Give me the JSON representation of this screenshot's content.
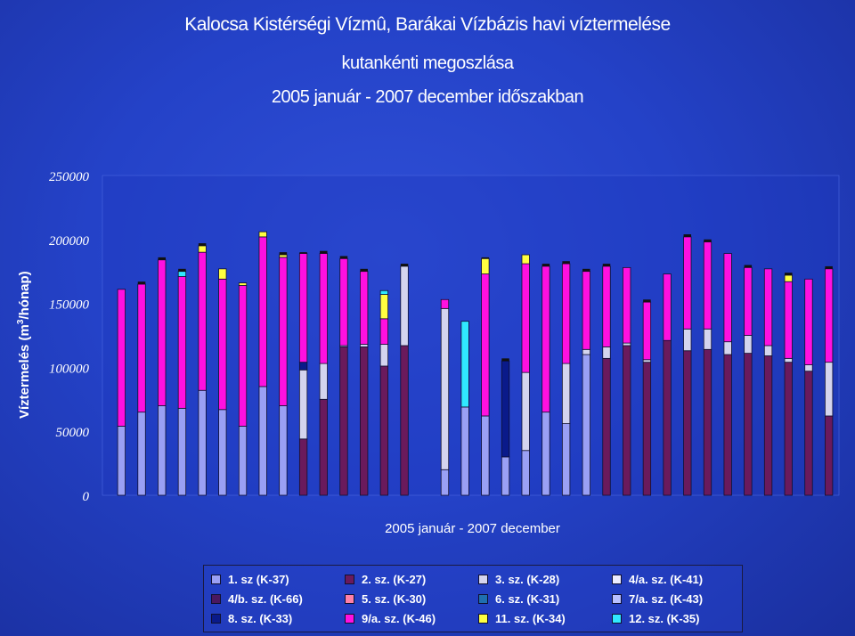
{
  "chart_data": {
    "type": "bar",
    "stacked": true,
    "title_lines": [
      "Kalocsa Kistérségi Vízmû, Barákai Vízbázis havi víztermelése",
      "kutankénti megoszlása",
      "2005 január - 2007 december időszakban"
    ],
    "xlabel": "2005 január - 2007 december",
    "ylabel_main": "Víztermelés (m",
    "ylabel_sup": "3",
    "ylabel_tail": "/hónap)",
    "ylim": [
      0,
      250000
    ],
    "yticks": [
      "0",
      "50000",
      "100000",
      "150000",
      "200000",
      "250000"
    ],
    "grid": false,
    "legend_position": "bottom",
    "series": [
      {
        "name": "1. sz (K-37)",
        "color": "#9aa0f4",
        "values": [
          54000,
          65000,
          70000,
          68000,
          82000,
          67000,
          54000,
          85000,
          70000,
          0,
          0,
          0,
          0,
          0,
          0,
          0,
          20000,
          69000,
          62000,
          30000,
          35000,
          65000,
          56000,
          110000,
          0,
          0,
          0,
          0,
          0,
          0,
          0,
          0,
          0,
          0,
          0,
          0
        ]
      },
      {
        "name": "2. sz. (K-27)",
        "color": "#6a1a5c",
        "values": [
          0,
          0,
          0,
          0,
          0,
          0,
          0,
          0,
          0,
          44000,
          75000,
          116000,
          116000,
          101000,
          117000,
          0,
          0,
          0,
          0,
          0,
          0,
          0,
          0,
          0,
          107000,
          117000,
          104000,
          121000,
          113000,
          114000,
          110000,
          111000,
          109000,
          104000,
          97000,
          62000
        ]
      },
      {
        "name": "3. sz. (K-28)",
        "color": "#d4d4ee",
        "values": [
          0,
          0,
          0,
          0,
          0,
          0,
          0,
          0,
          0,
          54000,
          28000,
          1000,
          2000,
          17000,
          62000,
          0,
          126000,
          0,
          0,
          0,
          61000,
          0,
          47000,
          4000,
          9000,
          2000,
          2000,
          0,
          17000,
          16000,
          10000,
          14000,
          8000,
          3000,
          5000,
          42000
        ]
      },
      {
        "name": "4/a. sz. (K-41)",
        "color": "#ececff",
        "values": [
          0,
          0,
          0,
          0,
          0,
          0,
          0,
          0,
          0,
          0,
          0,
          0,
          0,
          0,
          0,
          0,
          0,
          0,
          0,
          0,
          0,
          0,
          0,
          0,
          0,
          0,
          0,
          0,
          0,
          0,
          0,
          0,
          0,
          0,
          0,
          0
        ]
      },
      {
        "name": "4/b. sz. (K-66)",
        "color": "#4a1860",
        "values": [
          0,
          0,
          0,
          0,
          0,
          0,
          0,
          0,
          0,
          0,
          0,
          0,
          0,
          0,
          0,
          0,
          0,
          0,
          0,
          0,
          0,
          0,
          0,
          0,
          0,
          0,
          0,
          0,
          0,
          0,
          0,
          0,
          0,
          0,
          0,
          0
        ]
      },
      {
        "name": "5. sz. (K-30)",
        "color": "#ff80a8",
        "values": [
          0,
          0,
          0,
          0,
          0,
          0,
          0,
          0,
          0,
          0,
          0,
          0,
          0,
          0,
          0,
          0,
          0,
          0,
          0,
          0,
          0,
          0,
          0,
          0,
          0,
          0,
          0,
          0,
          0,
          0,
          0,
          0,
          0,
          0,
          0,
          0
        ]
      },
      {
        "name": "6. sz. (K-31)",
        "color": "#1f6fb0",
        "values": [
          0,
          0,
          0,
          0,
          0,
          0,
          0,
          0,
          0,
          0,
          0,
          0,
          0,
          0,
          0,
          0,
          0,
          0,
          0,
          0,
          0,
          0,
          0,
          0,
          0,
          0,
          0,
          0,
          0,
          0,
          0,
          0,
          0,
          0,
          0,
          0
        ]
      },
      {
        "name": "7/a. sz. (K-43)",
        "color": "#b8c0ff",
        "values": [
          0,
          0,
          0,
          0,
          0,
          0,
          0,
          0,
          0,
          0,
          0,
          0,
          0,
          0,
          0,
          0,
          0,
          0,
          0,
          0,
          0,
          0,
          0,
          0,
          0,
          0,
          0,
          0,
          0,
          0,
          0,
          0,
          0,
          0,
          0,
          0
        ]
      },
      {
        "name": "8. sz. (K-33)",
        "color": "#0a1a8a",
        "values": [
          0,
          0,
          0,
          0,
          0,
          0,
          0,
          0,
          0,
          6000,
          0,
          0,
          0,
          0,
          0,
          0,
          0,
          0,
          0,
          75000,
          0,
          0,
          0,
          0,
          0,
          0,
          0,
          0,
          0,
          0,
          0,
          0,
          0,
          0,
          0,
          0
        ]
      },
      {
        "name": "9/a. sz. (K-46)",
        "color": "#ff10e0",
        "values": [
          107000,
          100000,
          114000,
          103000,
          108000,
          102000,
          110000,
          117000,
          116000,
          85000,
          86000,
          68000,
          57000,
          20000,
          0,
          0,
          7000,
          0,
          111000,
          0,
          85000,
          114000,
          78000,
          61000,
          63000,
          59000,
          45000,
          52000,
          72000,
          68000,
          69000,
          53000,
          60000,
          60000,
          67000,
          73000
        ]
      },
      {
        "name": "11. sz. (K-34)",
        "color": "#ffff40",
        "values": [
          0,
          0,
          0,
          0,
          5000,
          8000,
          2000,
          4000,
          2000,
          0,
          0,
          0,
          0,
          19000,
          0,
          0,
          0,
          0,
          12000,
          0,
          7000,
          0,
          0,
          0,
          0,
          0,
          0,
          0,
          0,
          0,
          0,
          0,
          0,
          5000,
          0,
          0
        ]
      },
      {
        "name": "12. sz. (K-35)",
        "color": "#30e8ff",
        "values": [
          0,
          0,
          0,
          4000,
          0,
          0,
          0,
          0,
          0,
          0,
          0,
          0,
          0,
          3000,
          0,
          0,
          0,
          67000,
          0,
          0,
          0,
          0,
          0,
          0,
          0,
          0,
          0,
          0,
          0,
          0,
          0,
          0,
          0,
          0,
          0,
          0
        ]
      }
    ],
    "black_caps": [
      0,
      2000,
      2000,
      2000,
      2000,
      0,
      0,
      0,
      2000,
      1000,
      2000,
      2000,
      2000,
      0,
      2000,
      0,
      0,
      0,
      1000,
      2000,
      0,
      2000,
      2000,
      2000,
      2000,
      0,
      2000,
      0,
      2000,
      2000,
      0,
      2000,
      0,
      2000,
      0,
      2000
    ]
  }
}
